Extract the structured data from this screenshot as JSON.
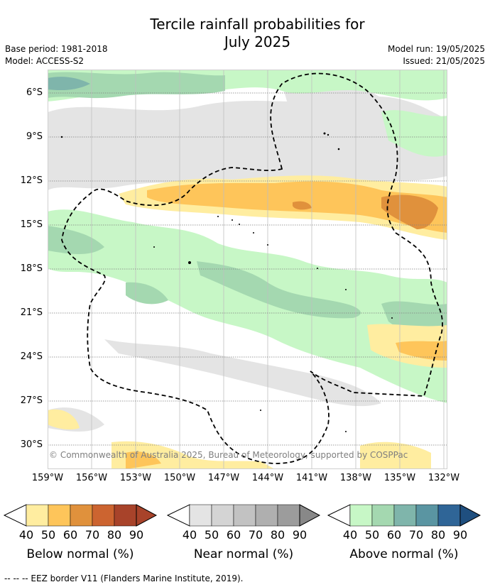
{
  "header": {
    "title_line1": "Tercile rainfall probabilities for",
    "title_line2": "July 2025",
    "base_period": "Base period: 1981-2018",
    "model": "Model: ACCESS-S2",
    "model_run": "Model run: 19/05/2025",
    "issued": "Issued: 21/05/2025"
  },
  "map": {
    "lat_ticks": [
      "6°S",
      "9°S",
      "12°S",
      "15°S",
      "18°S",
      "21°S",
      "24°S",
      "27°S",
      "30°S"
    ],
    "lon_ticks": [
      "159°W",
      "156°W",
      "153°W",
      "150°W",
      "147°W",
      "144°W",
      "141°W",
      "138°W",
      "135°W",
      "132°W"
    ],
    "copyright": "© Commonwealth of Australia 2025, Bureau of Meteorology, supported by COSPPac"
  },
  "colorbars": [
    {
      "label": "Below normal (%)",
      "ticks": [
        "40",
        "50",
        "60",
        "70",
        "80",
        "90"
      ],
      "colors": [
        "#ffeda0",
        "#fec55a",
        "#e0913c",
        "#cc6430",
        "#a8432a"
      ]
    },
    {
      "label": "Near normal (%)",
      "ticks": [
        "40",
        "50",
        "60",
        "70",
        "80",
        "90"
      ],
      "colors": [
        "#e4e4e4",
        "#d4d4d4",
        "#c2c2c2",
        "#afafaf",
        "#9c9c9c"
      ]
    },
    {
      "label": "Above normal (%)",
      "ticks": [
        "40",
        "50",
        "60",
        "70",
        "80",
        "90"
      ],
      "colors": [
        "#c7f7c6",
        "#a4d8b0",
        "#7fb5ab",
        "#5a95a2",
        "#2f6597"
      ]
    }
  ],
  "footnote": "--  --  -- EEZ border V11 (Flanders Marine Institute, 2019)."
}
